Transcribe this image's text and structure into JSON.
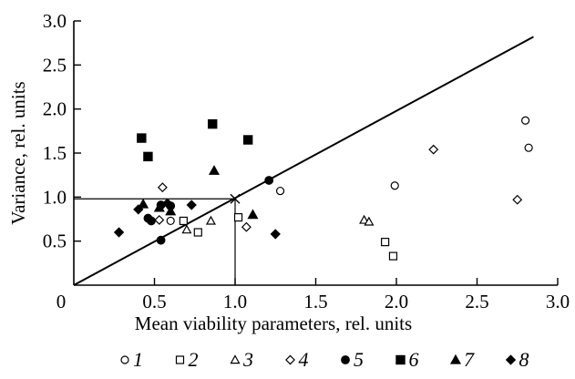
{
  "chart_data": {
    "type": "scatter",
    "xlabel": "Mean viability parameters, rel. units",
    "ylabel": "Variance, rel. units",
    "xlim": [
      0,
      3.0
    ],
    "ylim": [
      0,
      3.0
    ],
    "x_ticks": [
      "0",
      "0.5",
      "1.0",
      "1.5",
      "2.0",
      "2.5",
      "3.0"
    ],
    "y_ticks": [
      "0.5",
      "1.0",
      "1.5",
      "2.0",
      "2.5",
      "3.0"
    ],
    "grid": false,
    "legend_position": "bottom",
    "reference_line": {
      "from": [
        0,
        0
      ],
      "to": [
        2.85,
        2.82
      ]
    },
    "guide_point": {
      "x": 1.0,
      "y": 0.98
    },
    "series": [
      {
        "name": "1",
        "marker": "circle-open",
        "points": [
          [
            1.28,
            1.07
          ],
          [
            1.99,
            1.13
          ],
          [
            2.8,
            1.87
          ],
          [
            2.82,
            1.56
          ],
          [
            0.6,
            0.73
          ]
        ]
      },
      {
        "name": "2",
        "marker": "square-open",
        "points": [
          [
            0.68,
            0.73
          ],
          [
            0.77,
            0.6
          ],
          [
            1.02,
            0.77
          ],
          [
            1.93,
            0.49
          ],
          [
            1.98,
            0.33
          ]
        ]
      },
      {
        "name": "3",
        "marker": "triangle-open",
        "points": [
          [
            0.7,
            0.63
          ],
          [
            0.85,
            0.73
          ],
          [
            1.8,
            0.74
          ],
          [
            1.83,
            0.72
          ]
        ]
      },
      {
        "name": "4",
        "marker": "diamond-open",
        "points": [
          [
            0.55,
            1.11
          ],
          [
            0.53,
            0.74
          ],
          [
            1.07,
            0.66
          ],
          [
            2.23,
            1.54
          ],
          [
            2.75,
            0.97
          ]
        ]
      },
      {
        "name": "5",
        "marker": "circle-filled",
        "points": [
          [
            0.46,
            0.76
          ],
          [
            0.48,
            0.73
          ],
          [
            0.54,
            0.91
          ],
          [
            0.6,
            0.9
          ],
          [
            0.54,
            0.51
          ],
          [
            1.21,
            1.19
          ]
        ]
      },
      {
        "name": "6",
        "marker": "square-filled",
        "points": [
          [
            0.42,
            1.67
          ],
          [
            0.46,
            1.46
          ],
          [
            0.86,
            1.83
          ],
          [
            1.08,
            1.65
          ]
        ]
      },
      {
        "name": "7",
        "marker": "triangle-filled",
        "points": [
          [
            0.43,
            0.92
          ],
          [
            0.53,
            0.88
          ],
          [
            0.6,
            0.84
          ],
          [
            0.87,
            1.3
          ],
          [
            1.11,
            0.8
          ]
        ]
      },
      {
        "name": "8",
        "marker": "diamond-filled",
        "points": [
          [
            0.28,
            0.6
          ],
          [
            0.4,
            0.86
          ],
          [
            0.47,
            0.74
          ],
          [
            0.58,
            0.93
          ],
          [
            0.73,
            0.91
          ],
          [
            1.25,
            0.58
          ]
        ]
      }
    ]
  }
}
